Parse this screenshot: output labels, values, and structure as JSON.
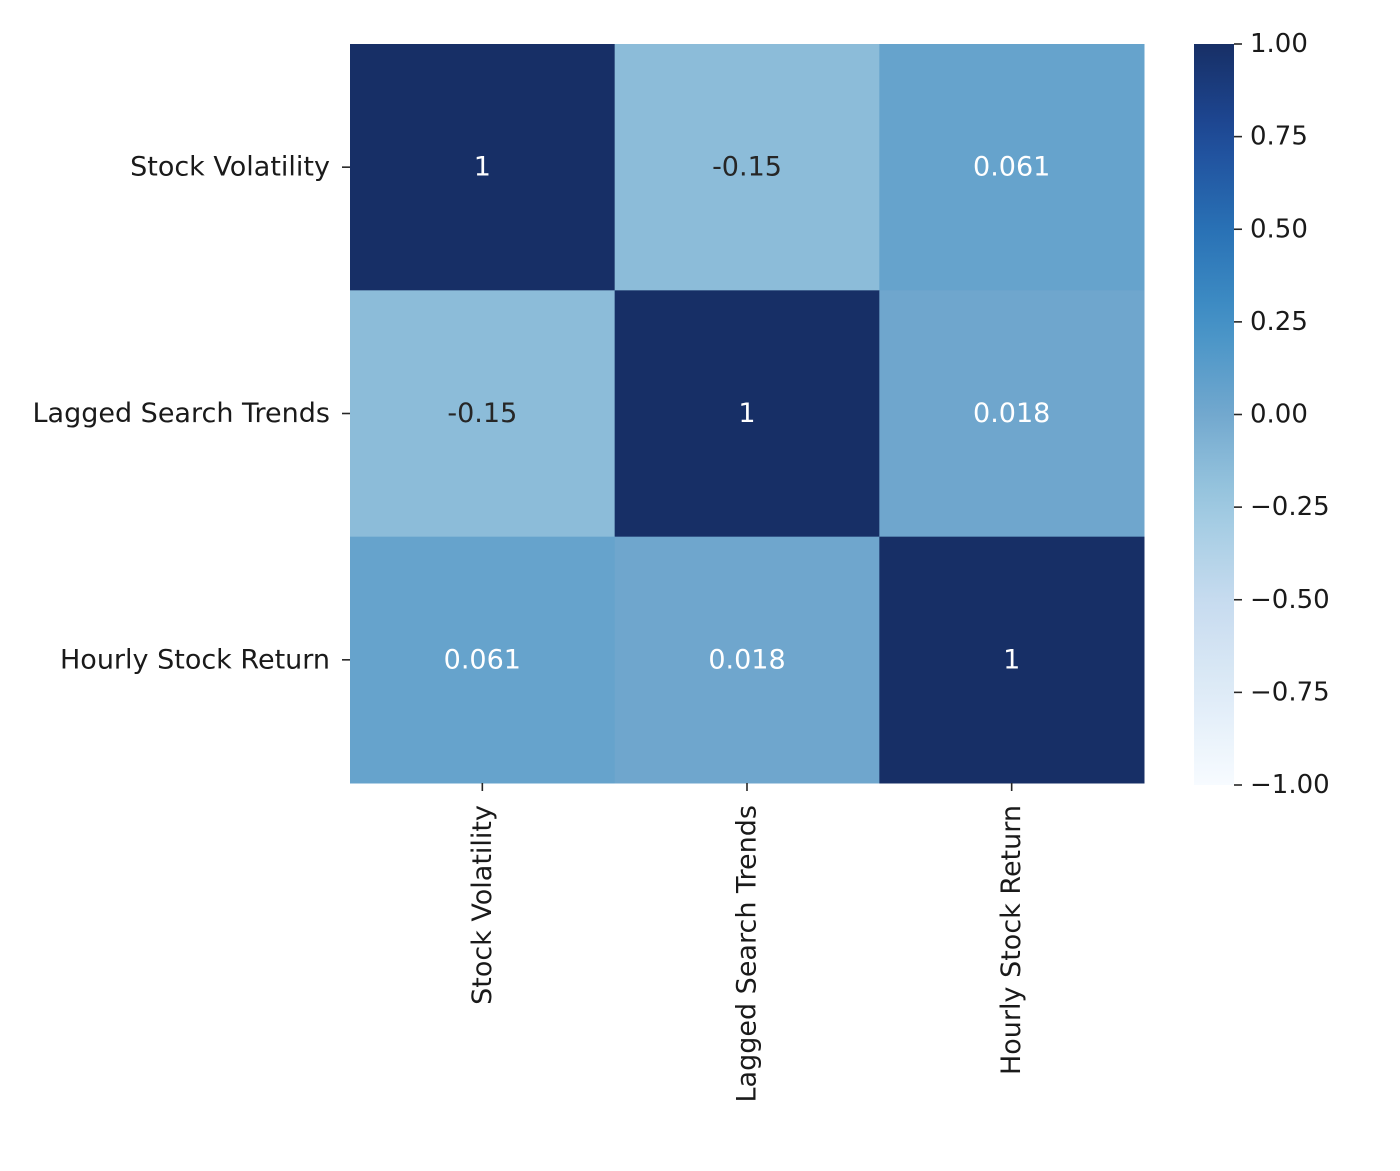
{
  "chart_data": {
    "type": "heatmap",
    "row_labels": [
      "Stock Volatility",
      "Lagged Search Trends",
      "Hourly Stock Return"
    ],
    "col_labels": [
      "Stock Volatility",
      "Lagged Search Trends",
      "Hourly Stock Return"
    ],
    "values": [
      [
        1.0,
        -0.15,
        0.061
      ],
      [
        -0.15,
        1.0,
        0.018
      ],
      [
        0.061,
        0.018,
        1.0
      ]
    ],
    "annotations": [
      [
        "1",
        "-0.15",
        "0.061"
      ],
      [
        "-0.15",
        "1",
        "0.018"
      ],
      [
        "0.061",
        "0.018",
        "1"
      ]
    ],
    "colormap": "Blues",
    "vmin": -1.0,
    "vmax": 1.0,
    "colorbar_ticks": [
      1.0,
      0.75,
      0.5,
      0.25,
      0.0,
      -0.25,
      -0.5,
      -0.75,
      -1.0
    ],
    "colorbar_tick_labels": [
      "1.00",
      "0.75",
      "0.50",
      "0.25",
      "0.00",
      "−0.25",
      "−0.50",
      "−0.75",
      "−1.00"
    ],
    "colors": {
      "min": "#f7fbff",
      "max": "#172f66",
      "annotation_dark_text": "#262626",
      "annotation_light_text": "#ffffff"
    },
    "title": "",
    "xlabel": "",
    "ylabel": ""
  }
}
